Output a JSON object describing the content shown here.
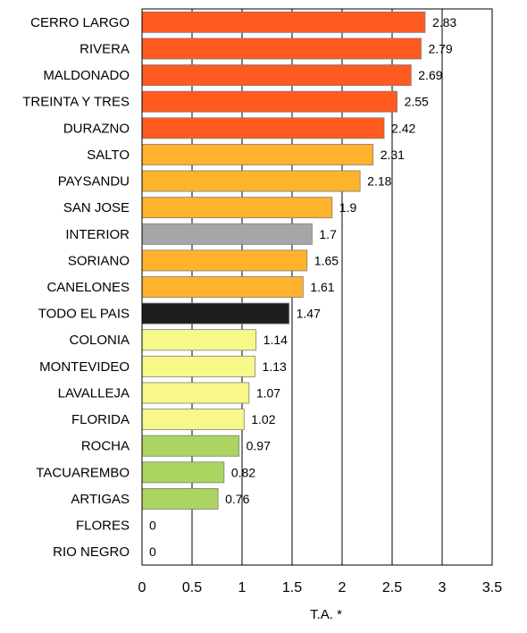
{
  "chart_data": {
    "type": "bar",
    "orientation": "horizontal",
    "categories": [
      "CERRO LARGO",
      "RIVERA",
      "MALDONADO",
      "TREINTA Y TRES",
      "DURAZNO",
      "SALTO",
      "PAYSANDU",
      "SAN JOSE",
      "INTERIOR",
      "SORIANO",
      "CANELONES",
      "TODO EL PAIS",
      "COLONIA",
      "MONTEVIDEO",
      "LAVALLEJA",
      "FLORIDA",
      "ROCHA",
      "TACUAREMBO",
      "ARTIGAS",
      "FLORES",
      "RIO NEGRO"
    ],
    "values": [
      2.83,
      2.79,
      2.69,
      2.55,
      2.42,
      2.31,
      2.18,
      1.9,
      1.7,
      1.65,
      1.61,
      1.47,
      1.14,
      1.13,
      1.07,
      1.02,
      0.97,
      0.82,
      0.76,
      0,
      0
    ],
    "value_labels": [
      "2.83",
      "2.79",
      "2.69",
      "2.55",
      "2.42",
      "2.31",
      "2.18",
      "1.9",
      "1.7",
      "1.65",
      "1.61",
      "1.47",
      "1.14",
      "1.13",
      "1.07",
      "1.02",
      "0.97",
      "0.82",
      "0.76",
      "0",
      "0"
    ],
    "bar_colors": [
      "#ff5a1f",
      "#ff5a1f",
      "#ff5a1f",
      "#ff5a1f",
      "#ff5a1f",
      "#ffb22b",
      "#ffb22b",
      "#ffb22b",
      "#a6a6a6",
      "#ffb22b",
      "#ffb22b",
      "#1e1e1e",
      "#f7f78a",
      "#f7f78a",
      "#f7f78a",
      "#f7f78a",
      "#acd460",
      "#acd460",
      "#acd460",
      "#acd460",
      "#acd460"
    ],
    "xlabel": "T.A. *",
    "xlim": [
      0,
      3.5
    ],
    "xticks": [
      "0",
      "0.5",
      "1",
      "1.5",
      "2",
      "2.5",
      "3",
      "3.5"
    ],
    "grid": "vertical"
  }
}
